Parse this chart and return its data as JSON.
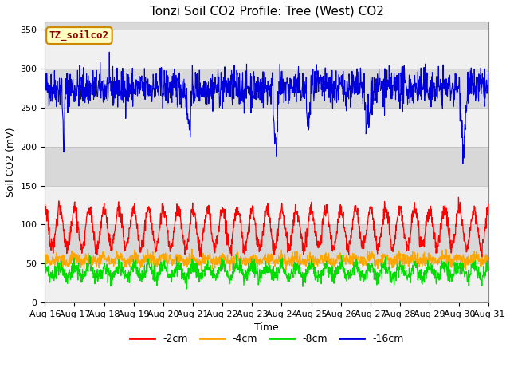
{
  "title": "Tonzi Soil CO2 Profile: Tree (West) CO2",
  "ylabel": "Soil CO2 (mV)",
  "xlabel": "Time",
  "xlabels": [
    "Aug 16",
    "Aug 17",
    "Aug 18",
    "Aug 19",
    "Aug 20",
    "Aug 21",
    "Aug 22",
    "Aug 23",
    "Aug 24",
    "Aug 25",
    "Aug 26",
    "Aug 27",
    "Aug 28",
    "Aug 29",
    "Aug 30",
    "Aug 31"
  ],
  "ylim": [
    0,
    360
  ],
  "yticks": [
    0,
    50,
    100,
    150,
    200,
    250,
    300,
    350
  ],
  "legend_label": "TZ_soilco2",
  "series_labels": [
    "-2cm",
    "-4cm",
    "-8cm",
    "-16cm"
  ],
  "series_colors": [
    "#ff0000",
    "#ffa500",
    "#00dd00",
    "#0000dd"
  ],
  "n_days": 15,
  "n_points_per_day": 96,
  "seed": 42,
  "blue_base": 275,
  "blue_noise": 12,
  "blue_spike_prob": 0.004,
  "blue_spike_mag": 80,
  "red_peak": 120,
  "red_trough": 70,
  "red_noise": 5,
  "orange_base": 52,
  "orange_amplitude": 6,
  "orange_noise": 4,
  "green_base": 32,
  "green_amplitude": 15,
  "green_noise": 5,
  "background_color": "#ffffff",
  "plot_bg_color": "#d8d8d8",
  "band_color": "#f0f0f0",
  "title_fontsize": 11,
  "label_fontsize": 9,
  "tick_fontsize": 8,
  "legend_fontsize": 9
}
